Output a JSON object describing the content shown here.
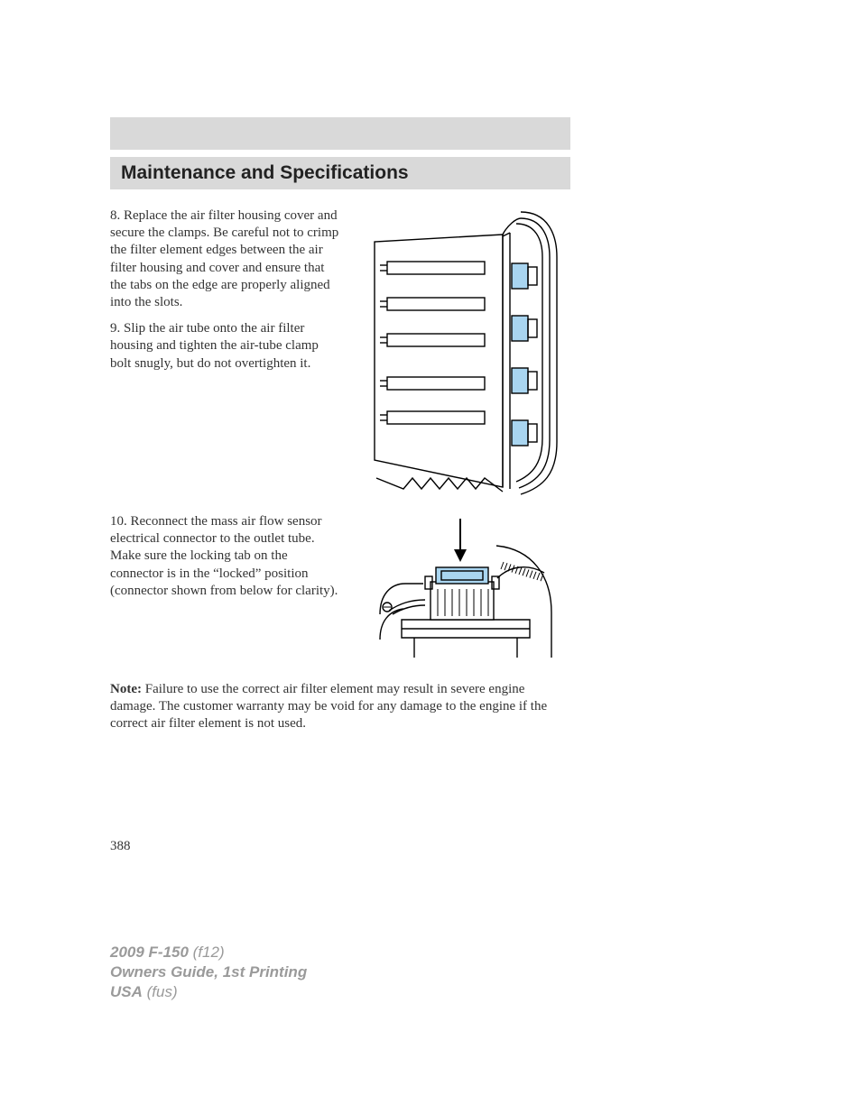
{
  "header": {
    "section_title": "Maintenance and Specifications"
  },
  "body": {
    "step8": "8. Replace the air filter housing cover and secure the clamps. Be careful not to crimp the filter element edges between the air filter housing and cover and ensure that the tabs on the edge are properly aligned into the slots.",
    "step9": "9. Slip the air tube onto the air filter housing and tighten the air-tube clamp bolt snugly, but do not overtighten it.",
    "step10": "10. Reconnect the mass air flow sensor electrical connector to the outlet tube. Make sure the locking tab on the connector is in the “locked” position (connector shown from below for clarity).",
    "note_label": "Note:",
    "note_text": " Failure to use the correct air filter element may result in severe engine damage. The customer warranty may be void for any damage to the engine if the correct air filter element is not used."
  },
  "page_number": "388",
  "footer": {
    "model": "2009 F-150",
    "model_code": " (f12)",
    "guide": "Owners Guide, 1st Printing",
    "region": "USA",
    "region_code": " (fus)"
  },
  "figures": {
    "fig1": {
      "type": "diagram",
      "description": "air-filter-housing-with-clamps",
      "stroke": "#000000",
      "stroke_width": 1.4,
      "highlight_fill": "#a9d5f0",
      "clamp_y_positions": [
        62,
        120,
        178,
        236
      ],
      "slot_y_positions": [
        60,
        100,
        140,
        188,
        226
      ],
      "notch_x_positions": [
        40,
        60,
        80,
        100,
        120
      ]
    },
    "fig2": {
      "type": "diagram",
      "description": "mass-air-flow-sensor-connector",
      "stroke": "#000000",
      "stroke_width": 1.4,
      "highlight_fill": "#a9d5f0",
      "hatch_count": 12
    }
  }
}
